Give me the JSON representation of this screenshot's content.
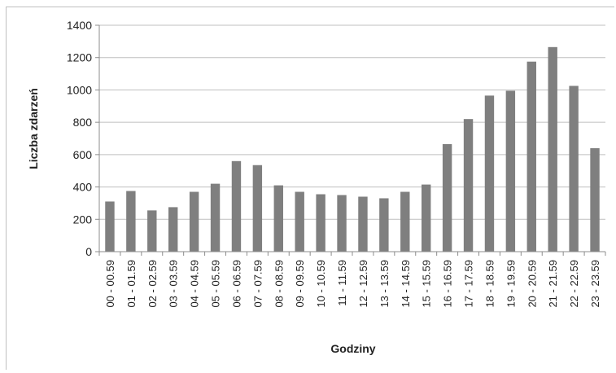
{
  "chart_data": {
    "type": "bar",
    "title": "",
    "xlabel": "Godziny",
    "ylabel": "Liczba zdarzeń",
    "ylim": [
      0,
      1400
    ],
    "yticks": [
      0,
      200,
      400,
      600,
      800,
      1000,
      1200,
      1400
    ],
    "grid": true,
    "legend": "none",
    "bar_color": "#7f7f7f",
    "categories": [
      "00 - 00.59",
      "01 - 01.59",
      "02 - 02.59",
      "03 - 03.59",
      "04 - 04.59",
      "05 - 05.59",
      "06 - 06.59",
      "07 - 07.59",
      "08 - 08.59",
      "09 - 09.59",
      "10 - 10.59",
      "11 - 11.59",
      "12 - 12.59",
      "13 - 13.59",
      "14 - 14.59",
      "15 - 15.59",
      "16 - 16.59",
      "17 - 17.59",
      "18 - 18.59",
      "19 - 19.59",
      "20 - 20.59",
      "21 - 21.59",
      "22 - 22.59",
      "23 - 23.59"
    ],
    "values": [
      310,
      375,
      255,
      275,
      370,
      420,
      560,
      535,
      410,
      370,
      355,
      350,
      340,
      330,
      370,
      415,
      665,
      820,
      965,
      995,
      1175,
      1265,
      1025,
      640
    ]
  }
}
